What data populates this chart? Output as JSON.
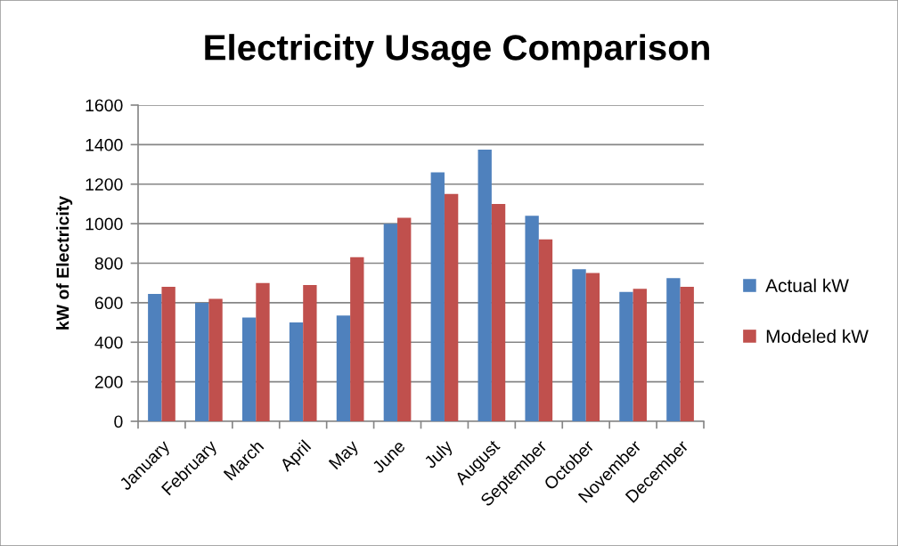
{
  "chart_data": {
    "type": "bar",
    "title": "Electricity Usage Comparison",
    "ylabel": "kW of Electricity",
    "categories": [
      "January",
      "February",
      "March",
      "April",
      "May",
      "June",
      "July",
      "August",
      "September",
      "October",
      "November",
      "December"
    ],
    "series": [
      {
        "name": "Actual kW",
        "color": "#4f81bd",
        "values": [
          645,
          600,
          525,
          500,
          535,
          1000,
          1260,
          1375,
          1040,
          770,
          655,
          725
        ]
      },
      {
        "name": "Modeled kW",
        "color": "#c0504d",
        "values": [
          680,
          620,
          700,
          690,
          830,
          1030,
          1150,
          1100,
          920,
          750,
          670,
          680
        ]
      }
    ],
    "ylim": [
      0,
      1600
    ],
    "yticks": [
      0,
      200,
      400,
      600,
      800,
      1000,
      1200,
      1400,
      1600
    ],
    "grid": "y",
    "legend": "right"
  }
}
